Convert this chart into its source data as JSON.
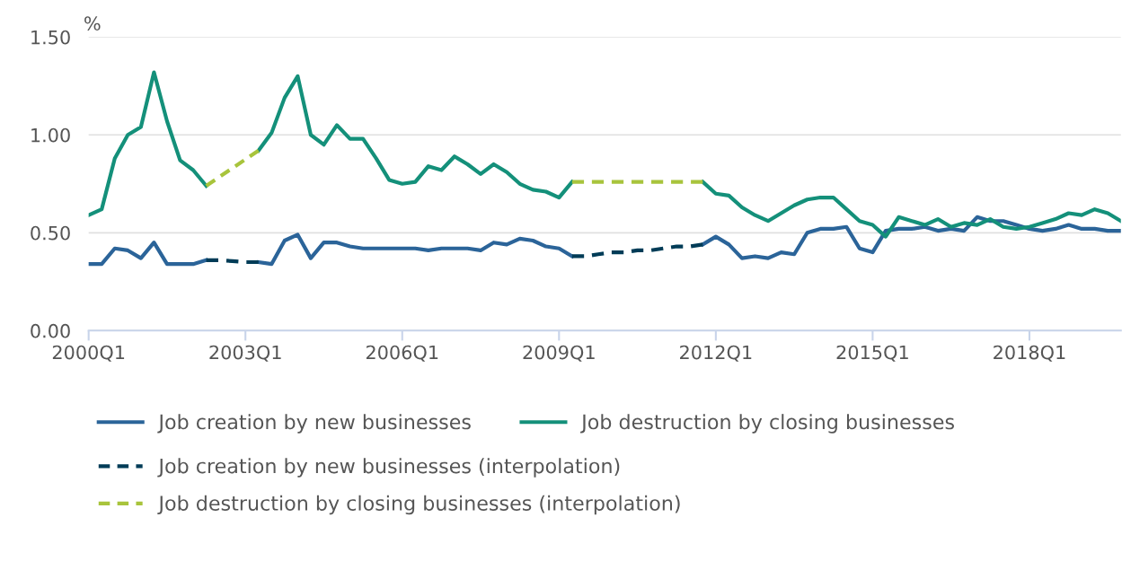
{
  "chart_data": {
    "type": "line",
    "ylabel": "%",
    "categories": [
      "2000Q1",
      null,
      null,
      null,
      null,
      null,
      null,
      null,
      null,
      null,
      null,
      null,
      "2003Q1",
      null,
      null,
      null,
      null,
      null,
      null,
      null,
      null,
      null,
      null,
      null,
      "2006Q1",
      null,
      null,
      null,
      null,
      null,
      null,
      null,
      null,
      null,
      null,
      null,
      "2009Q1",
      null,
      null,
      null,
      null,
      null,
      null,
      null,
      null,
      null,
      null,
      null,
      "2012Q1",
      null,
      null,
      null,
      null,
      null,
      null,
      null,
      null,
      null,
      null,
      null,
      "2015Q1",
      null,
      null,
      null,
      null,
      null,
      null,
      null,
      null,
      null,
      null,
      null,
      "2018Q1",
      null,
      null,
      null,
      null,
      null,
      null,
      null
    ],
    "series": [
      {
        "name": "Job creation by new businesses",
        "color": "#2b6499",
        "line_style": "solid",
        "values": [
          0.34,
          0.34,
          0.42,
          0.41,
          0.37,
          0.45,
          0.34,
          0.34,
          0.34,
          0.36,
          null,
          null,
          null,
          0.35,
          0.34,
          0.46,
          0.49,
          0.37,
          0.45,
          0.45,
          0.43,
          0.42,
          0.42,
          0.42,
          0.42,
          0.42,
          0.41,
          0.42,
          0.42,
          0.42,
          0.41,
          0.45,
          0.44,
          0.47,
          0.46,
          0.43,
          0.42,
          0.38,
          null,
          null,
          null,
          null,
          null,
          null,
          null,
          null,
          null,
          0.44,
          0.48,
          0.44,
          0.37,
          0.38,
          0.37,
          0.4,
          0.39,
          0.5,
          0.52,
          0.52,
          0.53,
          0.42,
          0.4,
          0.51,
          0.52,
          0.52,
          0.53,
          0.51,
          0.52,
          0.51,
          0.58,
          0.56,
          0.56,
          0.54,
          0.52,
          0.51,
          0.52,
          0.54,
          0.52,
          0.52,
          0.51,
          0.51
        ]
      },
      {
        "name": "Job destruction by closing businesses",
        "color": "#14907a",
        "line_style": "solid",
        "values": [
          0.59,
          0.62,
          0.88,
          1.0,
          1.04,
          1.32,
          1.07,
          0.87,
          0.82,
          0.74,
          null,
          null,
          null,
          0.92,
          1.01,
          1.19,
          1.3,
          1.0,
          0.95,
          1.05,
          0.98,
          0.98,
          0.88,
          0.77,
          0.75,
          0.76,
          0.84,
          0.82,
          0.89,
          0.85,
          0.8,
          0.85,
          0.81,
          0.75,
          0.72,
          0.71,
          0.68,
          0.76,
          null,
          null,
          null,
          null,
          null,
          null,
          null,
          null,
          null,
          0.76,
          0.7,
          0.69,
          0.63,
          0.59,
          0.56,
          0.6,
          0.64,
          0.67,
          0.68,
          0.68,
          0.62,
          0.56,
          0.54,
          0.48,
          0.58,
          0.56,
          0.54,
          0.57,
          0.53,
          0.55,
          0.54,
          0.57,
          0.53,
          0.52,
          0.53,
          0.55,
          0.57,
          0.6,
          0.59,
          0.62,
          0.6,
          0.56
        ]
      },
      {
        "name": "Job creation by new businesses (interpolation)",
        "color": "#003c57",
        "line_style": "dashed",
        "values": [
          null,
          null,
          null,
          null,
          null,
          null,
          null,
          null,
          null,
          0.36,
          0.36,
          0.355,
          0.35,
          0.35,
          null,
          null,
          null,
          null,
          null,
          null,
          null,
          null,
          null,
          null,
          null,
          null,
          null,
          null,
          null,
          null,
          null,
          null,
          null,
          null,
          null,
          null,
          null,
          0.38,
          0.38,
          0.39,
          0.4,
          0.4,
          0.41,
          0.41,
          0.42,
          0.43,
          0.43,
          0.44,
          null,
          null,
          null,
          null,
          null,
          null,
          null,
          null,
          null,
          null,
          null,
          null,
          null,
          null,
          null,
          null,
          null,
          null,
          null,
          null,
          null,
          null,
          null,
          null,
          null,
          null,
          null,
          null,
          null,
          null,
          null,
          null
        ]
      },
      {
        "name": "Job destruction by closing businesses (interpolation)",
        "color": "#a8c43c",
        "line_style": "dashed",
        "values": [
          null,
          null,
          null,
          null,
          null,
          null,
          null,
          null,
          null,
          0.74,
          0.785,
          0.83,
          0.875,
          0.92,
          null,
          null,
          null,
          null,
          null,
          null,
          null,
          null,
          null,
          null,
          null,
          null,
          null,
          null,
          null,
          null,
          null,
          null,
          null,
          null,
          null,
          null,
          null,
          0.76,
          0.76,
          0.76,
          0.76,
          0.76,
          0.76,
          0.76,
          0.76,
          0.76,
          0.76,
          0.76,
          null,
          null,
          null,
          null,
          null,
          null,
          null,
          null,
          null,
          null,
          null,
          null,
          null,
          null,
          null,
          null,
          null,
          null,
          null,
          null,
          null,
          null,
          null,
          null,
          null,
          null,
          null,
          null,
          null,
          null,
          null,
          null
        ]
      }
    ],
    "ylim": [
      0,
      1.5
    ],
    "yticks": [
      {
        "value": 0,
        "label": "0.00"
      },
      {
        "value": 0.5,
        "label": "0.50"
      },
      {
        "value": 1.0,
        "label": "1.00"
      },
      {
        "value": 1.5,
        "label": "1.50"
      }
    ],
    "grid": "y",
    "legend": "bottom",
    "marker": "none"
  }
}
